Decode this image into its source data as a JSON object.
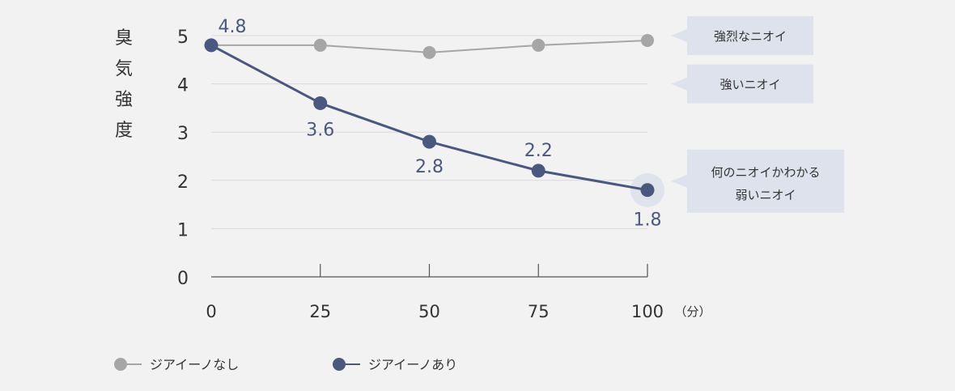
{
  "chart_data": {
    "type": "line",
    "x": [
      0,
      25,
      50,
      75,
      100
    ],
    "xlim": [
      0,
      100
    ],
    "ylim": [
      0,
      5
    ],
    "x_ticks": [
      "0",
      "25",
      "50",
      "75",
      "100"
    ],
    "y_ticks": [
      "0",
      "1",
      "2",
      "3",
      "4",
      "5"
    ],
    "ylabel": "臭気強度",
    "x_unit": "（分）",
    "grid": true,
    "legend_position": "bottom-left",
    "series": [
      {
        "name": "ジアイーノなし",
        "values": [
          4.8,
          4.8,
          4.65,
          4.8,
          4.9
        ],
        "color": "#a6a6a6",
        "point_labels": [
          "",
          "",
          "",
          "",
          ""
        ]
      },
      {
        "name": "ジアイーノあり",
        "values": [
          4.8,
          3.6,
          2.8,
          2.2,
          1.8
        ],
        "color": "#4a5880",
        "point_labels": [
          "4.8",
          "3.6",
          "2.8",
          "2.2",
          "1.8"
        ]
      }
    ],
    "annotations": [
      {
        "lines": [
          "強烈なニオイ"
        ],
        "level": 5
      },
      {
        "lines": [
          "強いニオイ"
        ],
        "level": 4
      },
      {
        "lines": [
          "何のニオイかわかる",
          "弱いニオイ"
        ],
        "level": 2
      }
    ],
    "colors": {
      "background": "#f2f2f2",
      "grid": "#d9d9d9",
      "axis": "#555555",
      "text": "#333333",
      "annotation_box": "#dde2ec",
      "highlight_halo": "#dfe3ec"
    }
  }
}
